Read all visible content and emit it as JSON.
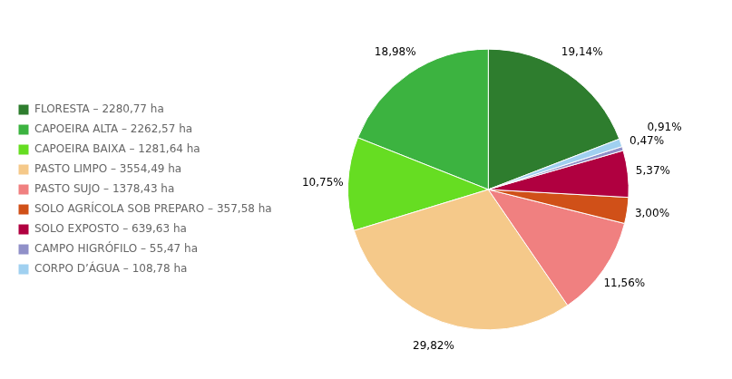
{
  "chart_data": {
    "type": "pie",
    "categories": [
      "FLORESTA – 2280,77 ha",
      "CAPOEIRA ALTA – 2262,57 ha",
      "CAPOEIRA BAIXA – 1281,64 ha",
      "PASTO LIMPO – 3554,49 ha",
      "PASTO SUJO – 1378,43 ha",
      "SOLO AGRÍCOLA SOB PREPARO – 357,58 ha",
      "SOLO EXPOSTO – 639,63 ha",
      "CAMPO HIGRÓFILO – 55,47 ha",
      "CORPO D’ÁGUA – 108,78 ha"
    ],
    "values": [
      19.14,
      18.98,
      10.75,
      29.82,
      11.56,
      3.0,
      5.37,
      0.47,
      0.91
    ],
    "value_labels": [
      "19,14%",
      "18,98%",
      "10,75%",
      "29,82%",
      "11,56%",
      "3,00%",
      "5,37%",
      "0,47%",
      "0,91%"
    ],
    "colors": [
      "#2e7d2e",
      "#3cb340",
      "#66dd22",
      "#f5c98a",
      "#f08080",
      "#d05018",
      "#b00040",
      "#9090c8",
      "#a0d0f0"
    ],
    "data_labels": true,
    "legend": "left"
  }
}
